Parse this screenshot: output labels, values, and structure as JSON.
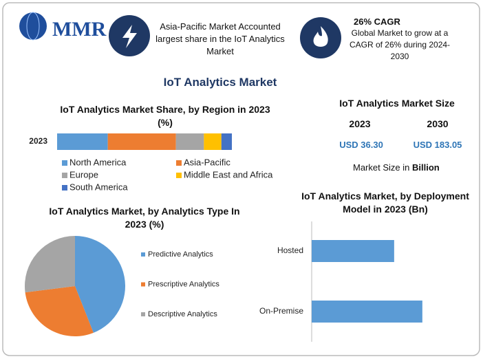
{
  "header": {
    "logo": "MMR",
    "info1": "Asia-Pacific Market Accounted largest share in the IoT Analytics Market",
    "info2_title": "26% CAGR",
    "info2_text": "Global Market to grow at a CAGR of 26% during 2024-2030"
  },
  "title": "IoT Analytics Market",
  "market_size": {
    "title": "IoT Analytics Market Size",
    "years": [
      "2023",
      "2030"
    ],
    "values": [
      "USD 36.30",
      "USD 183.05"
    ],
    "note": "Market Size in",
    "note_unit": "Billion"
  },
  "chart_data": [
    {
      "type": "stacked-bar",
      "title": "IoT Analytics Market Share, by Region in 2023 (%)",
      "categories": [
        "2023"
      ],
      "xlim": [
        0,
        100
      ],
      "series": [
        {
          "name": "North America",
          "color": "#5b9bd5",
          "values": [
            29
          ]
        },
        {
          "name": "Asia-Pacific",
          "color": "#ed7d31",
          "values": [
            39
          ]
        },
        {
          "name": "Europe",
          "color": "#a5a5a5",
          "values": [
            16
          ]
        },
        {
          "name": "Middle East and Africa",
          "color": "#ffc000",
          "values": [
            10
          ]
        },
        {
          "name": "South America",
          "color": "#4472c4",
          "values": [
            6
          ]
        }
      ]
    },
    {
      "type": "pie",
      "title": "IoT Analytics Market, by Analytics Type In 2023 (%)",
      "categories": [
        "Predictive Analytics",
        "Prescriptive Analytics",
        "Descriptive Analytics"
      ],
      "values": [
        44,
        29,
        27
      ],
      "colors": [
        "#5b9bd5",
        "#ed7d31",
        "#a5a5a5"
      ]
    },
    {
      "type": "hbar",
      "title": "IoT Analytics Market, by Deployment Model in 2023 (Bn)",
      "categories": [
        "Hosted",
        "On-Premise"
      ],
      "values": [
        15.5,
        20.8
      ],
      "color": "#5b9bd5",
      "xlim": [
        0,
        30
      ]
    }
  ]
}
